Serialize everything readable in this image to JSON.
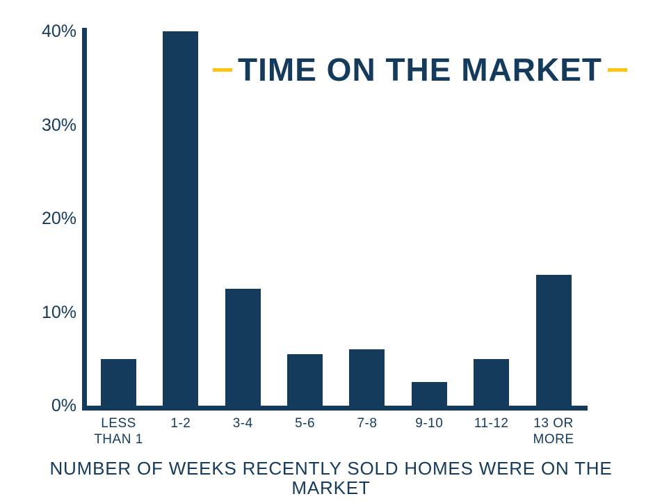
{
  "title": {
    "text": "TIME ON THE MARKET"
  },
  "colors": {
    "navy": "#143a5c",
    "yellow": "#ffc50a",
    "background": "#ffffff"
  },
  "chart_data": {
    "type": "bar",
    "title": "TIME ON THE MARKET",
    "categories": [
      "LESS THAN 1",
      "1-2",
      "3-4",
      "5-6",
      "7-8",
      "9-10",
      "11-12",
      "13 OR MORE"
    ],
    "display_labels": [
      "LESS\nTHAN 1",
      "1-2",
      "3-4",
      "5-6",
      "7-8",
      "9-10",
      "11-12",
      "13 OR\nMORE"
    ],
    "values": [
      5,
      40,
      12.5,
      5.5,
      6,
      2.5,
      5,
      14
    ],
    "xlabel": "NUMBER OF WEEKS RECENTLY SOLD HOMES WERE ON THE MARKET",
    "ylabel": "",
    "ylim": [
      0,
      40
    ],
    "yticks": [
      0,
      10,
      20,
      30,
      40
    ],
    "ytick_labels": [
      "0%",
      "10%",
      "20%",
      "30%",
      "40%"
    ],
    "grid": false,
    "legend": false,
    "bar_color": "#143a5c"
  }
}
